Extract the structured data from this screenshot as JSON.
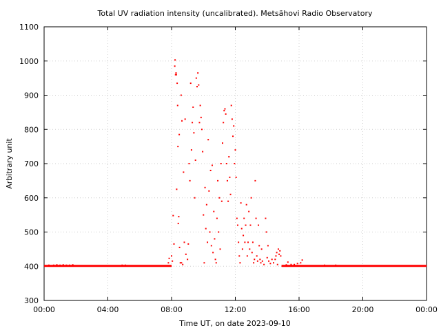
{
  "chart_data": {
    "type": "scatter",
    "title": "Total UV radiation intensity (uncalibrated). Metsähovi Radio Observatory",
    "xlabel": "Time UT, on date 2023-09-10",
    "ylabel": "Arbitrary unit",
    "xlim": [
      0,
      24
    ],
    "ylim": [
      300,
      1100
    ],
    "x_ticks": [
      {
        "value": 0,
        "label": "00:00"
      },
      {
        "value": 4,
        "label": "04:00"
      },
      {
        "value": 8,
        "label": "08:00"
      },
      {
        "value": 12,
        "label": "12:00"
      },
      {
        "value": 16,
        "label": "16:00"
      },
      {
        "value": 20,
        "label": "20:00"
      },
      {
        "value": 24,
        "label": "00:00"
      }
    ],
    "y_ticks": [
      300,
      400,
      500,
      600,
      700,
      800,
      900,
      1000,
      1100
    ],
    "grid": true,
    "series": [
      {
        "color": "#ff0000",
        "baseline": {
          "value": 401,
          "x_ranges": [
            [
              0,
              8.0
            ],
            [
              14.9,
              24
            ]
          ]
        },
        "points": [
          [
            0.3,
            403
          ],
          [
            0.6,
            403
          ],
          [
            0.8,
            404
          ],
          [
            1.0,
            403
          ],
          [
            1.2,
            404
          ],
          [
            1.4,
            403
          ],
          [
            1.6,
            403
          ],
          [
            1.8,
            404
          ],
          [
            4.9,
            403
          ],
          [
            5.1,
            403
          ],
          [
            7.8,
            410
          ],
          [
            7.85,
            423
          ],
          [
            8.0,
            430
          ],
          [
            8.05,
            415
          ],
          [
            8.1,
            548
          ],
          [
            8.15,
            465
          ],
          [
            8.2,
            985
          ],
          [
            8.22,
            1003
          ],
          [
            8.25,
            960
          ],
          [
            8.28,
            965
          ],
          [
            8.3,
            960
          ],
          [
            8.32,
            625
          ],
          [
            8.35,
            935
          ],
          [
            8.38,
            870
          ],
          [
            8.4,
            750
          ],
          [
            8.42,
            525
          ],
          [
            8.45,
            545
          ],
          [
            8.48,
            785
          ],
          [
            8.5,
            455
          ],
          [
            8.55,
            410
          ],
          [
            8.6,
            900
          ],
          [
            8.62,
            410
          ],
          [
            8.65,
            825
          ],
          [
            8.7,
            405
          ],
          [
            8.75,
            675
          ],
          [
            8.8,
            470
          ],
          [
            8.85,
            830
          ],
          [
            8.9,
            435
          ],
          [
            9.0,
            420
          ],
          [
            9.05,
            465
          ],
          [
            9.1,
            700
          ],
          [
            9.15,
            650
          ],
          [
            9.2,
            935
          ],
          [
            9.25,
            740
          ],
          [
            9.3,
            820
          ],
          [
            9.35,
            865
          ],
          [
            9.4,
            790
          ],
          [
            9.45,
            600
          ],
          [
            9.5,
            710
          ],
          [
            9.55,
            950
          ],
          [
            9.6,
            925
          ],
          [
            9.65,
            965
          ],
          [
            9.7,
            930
          ],
          [
            9.75,
            820
          ],
          [
            9.8,
            870
          ],
          [
            9.85,
            835
          ],
          [
            9.9,
            800
          ],
          [
            9.95,
            735
          ],
          [
            10.0,
            550
          ],
          [
            10.05,
            410
          ],
          [
            10.1,
            630
          ],
          [
            10.15,
            510
          ],
          [
            10.2,
            580
          ],
          [
            10.25,
            470
          ],
          [
            10.3,
            770
          ],
          [
            10.35,
            620
          ],
          [
            10.4,
            500
          ],
          [
            10.45,
            680
          ],
          [
            10.5,
            460
          ],
          [
            10.55,
            695
          ],
          [
            10.6,
            440
          ],
          [
            10.65,
            560
          ],
          [
            10.7,
            480
          ],
          [
            10.75,
            420
          ],
          [
            10.8,
            410
          ],
          [
            10.85,
            540
          ],
          [
            10.9,
            650
          ],
          [
            10.95,
            500
          ],
          [
            11.0,
            600
          ],
          [
            11.05,
            450
          ],
          [
            11.1,
            700
          ],
          [
            11.15,
            590
          ],
          [
            11.2,
            760
          ],
          [
            11.25,
            820
          ],
          [
            11.3,
            855
          ],
          [
            11.35,
            860
          ],
          [
            11.4,
            845
          ],
          [
            11.45,
            700
          ],
          [
            11.5,
            650
          ],
          [
            11.55,
            590
          ],
          [
            11.6,
            720
          ],
          [
            11.65,
            660
          ],
          [
            11.7,
            610
          ],
          [
            11.75,
            870
          ],
          [
            11.8,
            830
          ],
          [
            11.85,
            780
          ],
          [
            11.9,
            810
          ],
          [
            11.95,
            700
          ],
          [
            12.0,
            740
          ],
          [
            12.05,
            660
          ],
          [
            12.1,
            540
          ],
          [
            12.15,
            520
          ],
          [
            12.2,
            470
          ],
          [
            12.25,
            430
          ],
          [
            12.3,
            410
          ],
          [
            12.35,
            585
          ],
          [
            12.4,
            510
          ],
          [
            12.45,
            450
          ],
          [
            12.5,
            490
          ],
          [
            12.55,
            540
          ],
          [
            12.6,
            470
          ],
          [
            12.65,
            520
          ],
          [
            12.7,
            580
          ],
          [
            12.75,
            430
          ],
          [
            12.8,
            470
          ],
          [
            12.85,
            560
          ],
          [
            12.9,
            450
          ],
          [
            12.95,
            520
          ],
          [
            13.0,
            600
          ],
          [
            13.05,
            440
          ],
          [
            13.1,
            470
          ],
          [
            13.15,
            410
          ],
          [
            13.2,
            420
          ],
          [
            13.25,
            650
          ],
          [
            13.3,
            540
          ],
          [
            13.35,
            430
          ],
          [
            13.4,
            415
          ],
          [
            13.45,
            520
          ],
          [
            13.5,
            460
          ],
          [
            13.55,
            420
          ],
          [
            13.6,
            410
          ],
          [
            13.65,
            450
          ],
          [
            13.7,
            415
          ],
          [
            13.8,
            405
          ],
          [
            13.9,
            540
          ],
          [
            13.95,
            500
          ],
          [
            14.0,
            425
          ],
          [
            14.05,
            460
          ],
          [
            14.1,
            415
          ],
          [
            14.2,
            408
          ],
          [
            14.3,
            420
          ],
          [
            14.4,
            410
          ],
          [
            14.5,
            420
          ],
          [
            14.55,
            430
          ],
          [
            14.6,
            440
          ],
          [
            14.65,
            405
          ],
          [
            14.7,
            450
          ],
          [
            14.75,
            435
          ],
          [
            14.8,
            445
          ],
          [
            14.85,
            430
          ],
          [
            15.2,
            404
          ],
          [
            15.3,
            412
          ],
          [
            15.5,
            405
          ],
          [
            15.7,
            405
          ],
          [
            15.9,
            408
          ],
          [
            16.1,
            410
          ],
          [
            16.2,
            418
          ],
          [
            17.6,
            403
          ],
          [
            18.3,
            403
          ]
        ]
      }
    ]
  }
}
